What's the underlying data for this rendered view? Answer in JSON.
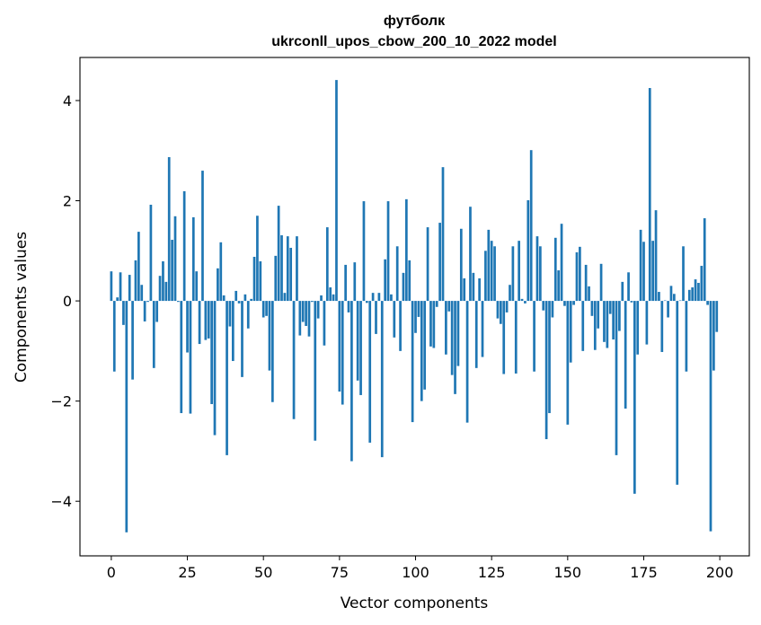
{
  "chart_data": {
    "type": "bar",
    "title": "футболк",
    "subtitle": "ukrconll_upos_cbow_200_10_2022 model",
    "xlabel": "Vector components",
    "ylabel": "Components values",
    "xlim": [
      -10.3,
      209.7
    ],
    "ylim": [
      -5.09,
      4.86
    ],
    "xticks": [
      0,
      25,
      50,
      75,
      100,
      125,
      150,
      175,
      200
    ],
    "yticks": [
      -4,
      -2,
      0,
      2,
      4
    ],
    "ytick_labels": [
      "−4",
      "−2",
      "0",
      "2",
      "4"
    ],
    "grid": false,
    "color": "#1f77b4",
    "values": [
      0.59,
      -1.41,
      0.07,
      0.57,
      -0.48,
      -4.62,
      0.52,
      -1.57,
      0.81,
      1.38,
      0.32,
      -0.41,
      -0.02,
      1.92,
      -1.34,
      -0.42,
      0.5,
      0.79,
      0.38,
      2.87,
      1.22,
      1.69,
      -0.02,
      -2.24,
      2.19,
      -1.03,
      -2.25,
      1.67,
      0.59,
      -0.86,
      2.6,
      -0.78,
      -0.75,
      -2.06,
      -2.68,
      0.65,
      1.17,
      0.11,
      -3.08,
      -0.51,
      -1.2,
      0.2,
      -0.05,
      -1.52,
      0.13,
      -0.55,
      0.04,
      0.88,
      1.7,
      0.79,
      -0.33,
      -0.3,
      -1.39,
      -2.02,
      0.9,
      1.9,
      1.31,
      0.16,
      1.29,
      1.06,
      -2.36,
      1.29,
      -0.69,
      -0.42,
      -0.5,
      -0.71,
      -0.02,
      -2.79,
      -0.35,
      0.11,
      -0.89,
      1.47,
      0.27,
      0.13,
      4.41,
      -1.81,
      -2.07,
      0.72,
      -0.23,
      -3.2,
      0.77,
      -1.59,
      -1.88,
      1.99,
      -0.04,
      -2.83,
      0.16,
      -0.66,
      0.16,
      -3.12,
      0.83,
      1.99,
      0.13,
      -0.73,
      1.09,
      -1.0,
      0.56,
      2.03,
      0.81,
      -2.42,
      -0.64,
      -0.32,
      -2.0,
      -1.77,
      1.47,
      -0.91,
      -0.94,
      -0.12,
      1.56,
      2.67,
      -1.07,
      -0.21,
      -1.48,
      -1.86,
      -1.3,
      1.44,
      0.45,
      -2.43,
      1.88,
      0.56,
      -1.34,
      0.45,
      -1.12,
      1.0,
      1.42,
      1.2,
      1.09,
      -0.35,
      -0.46,
      -1.46,
      -0.23,
      0.32,
      1.09,
      -1.45,
      1.2,
      0.04,
      -0.05,
      2.01,
      3.01,
      -1.41,
      1.29,
      1.09,
      -0.19,
      -2.76,
      -2.24,
      -0.33,
      1.26,
      0.61,
      1.54,
      -0.1,
      -2.47,
      -1.23,
      -0.08,
      0.97,
      1.08,
      -1.0,
      0.72,
      0.29,
      -0.3,
      -0.98,
      -0.55,
      0.74,
      -0.82,
      -0.94,
      -0.26,
      -0.77,
      -3.08,
      -0.6,
      0.38,
      -2.15,
      0.57,
      -0.03,
      -3.85,
      -1.07,
      1.42,
      1.18,
      -0.87,
      4.25,
      1.2,
      1.81,
      0.18,
      -1.02,
      0.01,
      -0.33,
      0.3,
      0.14,
      -3.67,
      0.01,
      1.09,
      -1.41,
      0.22,
      0.27,
      0.43,
      0.36,
      0.7,
      1.65,
      -0.08,
      -4.6,
      -1.39,
      -0.62
    ]
  }
}
